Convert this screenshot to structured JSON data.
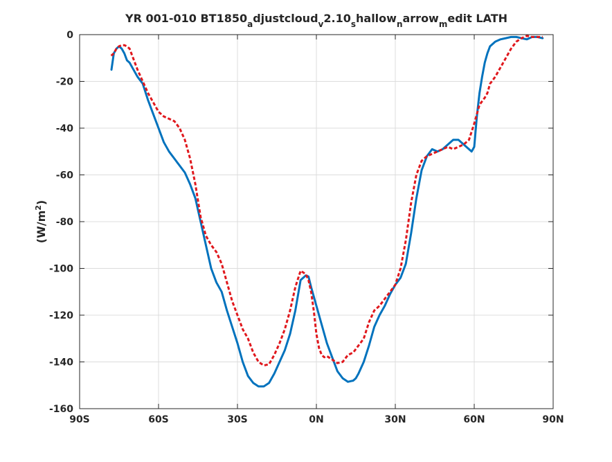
{
  "chart_data": {
    "type": "line",
    "title_parts": [
      {
        "text": "YR 001-010 BT1850",
        "sub": false
      },
      {
        "text": "a",
        "sub": true
      },
      {
        "text": "djustcloud",
        "sub": false
      },
      {
        "text": "v",
        "sub": true
      },
      {
        "text": "2.10",
        "sub": false
      },
      {
        "text": "s",
        "sub": true
      },
      {
        "text": "hallow",
        "sub": false
      },
      {
        "text": "n",
        "sub": true
      },
      {
        "text": "arrow",
        "sub": false
      },
      {
        "text": "m",
        "sub": true
      },
      {
        "text": "edit LATH",
        "sub": false
      }
    ],
    "ylabel": "(W/m",
    "ylabel_sup": "2",
    "ylabel_close": ")",
    "xlabel": "",
    "xlim": [
      -90,
      90
    ],
    "ylim": [
      -160,
      0
    ],
    "grid": true,
    "xticks": [
      -90,
      -60,
      -30,
      0,
      30,
      60,
      90
    ],
    "xtick_labels": [
      "90S",
      "60S",
      "30S",
      "0N",
      "30N",
      "60N",
      "90N"
    ],
    "yticks": [
      0,
      -20,
      -40,
      -60,
      -80,
      -100,
      -120,
      -140,
      -160
    ],
    "ytick_labels": [
      "0",
      "-20",
      "-40",
      "-60",
      "-80",
      "-100",
      "-120",
      "-140",
      "-160"
    ],
    "series": [
      {
        "color": "#0072BD",
        "style": "solid",
        "x": [
          -77.9,
          -77,
          -76,
          -75,
          -74,
          -73,
          -72,
          -71,
          -70,
          -68,
          -66,
          -64,
          -62,
          -60,
          -58,
          -56,
          -54,
          -52,
          -50,
          -48,
          -46,
          -44,
          -42,
          -40,
          -38,
          -36,
          -34,
          -32,
          -30,
          -28,
          -26,
          -24,
          -22,
          -20,
          -18,
          -16,
          -14,
          -12,
          -10,
          -8,
          -6,
          -4,
          -3,
          -2,
          -1,
          0,
          1,
          2,
          3,
          4,
          6,
          8,
          10,
          12,
          14,
          15,
          16,
          18,
          20,
          22,
          24,
          26,
          28,
          30,
          32,
          34,
          36,
          38,
          40,
          42,
          44,
          46,
          48,
          50,
          52,
          54,
          56,
          58,
          59,
          60,
          61,
          62,
          63,
          64,
          65,
          66,
          67,
          68,
          70,
          72,
          74,
          76,
          78,
          80,
          82,
          84,
          86
        ],
        "y": [
          -15,
          -8,
          -6,
          -5,
          -6,
          -8,
          -11,
          -12,
          -14,
          -18,
          -21,
          -28,
          -34,
          -40,
          -46,
          -50,
          -53,
          -56,
          -59,
          -64,
          -70,
          -80,
          -90,
          -100,
          -106,
          -110,
          -118,
          -125,
          -132,
          -140,
          -146,
          -149,
          -150.5,
          -150.5,
          -149,
          -145,
          -140,
          -135,
          -128,
          -118,
          -105,
          -103,
          -103.5,
          -108,
          -112,
          -116,
          -120,
          -124,
          -128,
          -132,
          -138,
          -144,
          -147,
          -148.5,
          -148,
          -147,
          -145,
          -140,
          -133,
          -125,
          -120,
          -116,
          -111,
          -107,
          -104,
          -98,
          -85,
          -70,
          -58,
          -52,
          -49,
          -50,
          -49,
          -47,
          -45,
          -45,
          -47,
          -49,
          -50,
          -48,
          -35,
          -25,
          -18,
          -12,
          -8,
          -5,
          -4,
          -3,
          -2,
          -1.5,
          -1,
          -1,
          -1.5,
          -2,
          -1,
          -1,
          -1.5
        ]
      },
      {
        "color": "#E0181D",
        "style": "dashed",
        "x": [
          -78,
          -77,
          -76,
          -75,
          -74,
          -73,
          -72,
          -71,
          -70,
          -68,
          -66,
          -64,
          -62,
          -60,
          -58,
          -56,
          -54,
          -52,
          -50,
          -48,
          -46,
          -44,
          -42,
          -40,
          -38,
          -36,
          -34,
          -32,
          -30,
          -28,
          -26,
          -24,
          -22,
          -20,
          -18,
          -16,
          -14,
          -12,
          -10,
          -8,
          -6,
          -4,
          -3,
          -2,
          -1,
          0,
          1,
          2,
          3,
          4,
          6,
          8,
          10,
          12,
          14,
          16,
          18,
          20,
          22,
          24,
          26,
          28,
          30,
          32,
          34,
          36,
          38,
          40,
          42,
          44,
          46,
          48,
          50,
          52,
          54,
          56,
          58,
          60,
          62,
          64,
          65,
          66,
          68,
          70,
          72,
          74,
          76,
          78,
          80,
          82,
          84,
          86
        ],
        "y": [
          -9,
          -8,
          -6,
          -5,
          -4.5,
          -4.5,
          -5,
          -6,
          -9,
          -15,
          -20,
          -25,
          -29,
          -33,
          -35,
          -36,
          -37,
          -40,
          -45,
          -53,
          -64,
          -78,
          -86,
          -90,
          -93,
          -98,
          -106,
          -114,
          -120,
          -126,
          -130,
          -136,
          -140,
          -141.5,
          -141,
          -137,
          -132,
          -126,
          -118,
          -108,
          -101,
          -102.5,
          -105,
          -110,
          -118,
          -128,
          -134,
          -137,
          -138,
          -137.5,
          -139,
          -140.5,
          -140,
          -137,
          -136,
          -133,
          -130,
          -123,
          -118,
          -116,
          -113,
          -110,
          -107,
          -100,
          -88,
          -72,
          -60,
          -54,
          -52,
          -51,
          -50,
          -49,
          -48,
          -49,
          -48,
          -47,
          -45,
          -38,
          -30,
          -27,
          -25,
          -21,
          -18,
          -14,
          -10,
          -6,
          -3,
          -1.5,
          -0.5,
          -1,
          -1,
          -1
        ]
      }
    ]
  }
}
